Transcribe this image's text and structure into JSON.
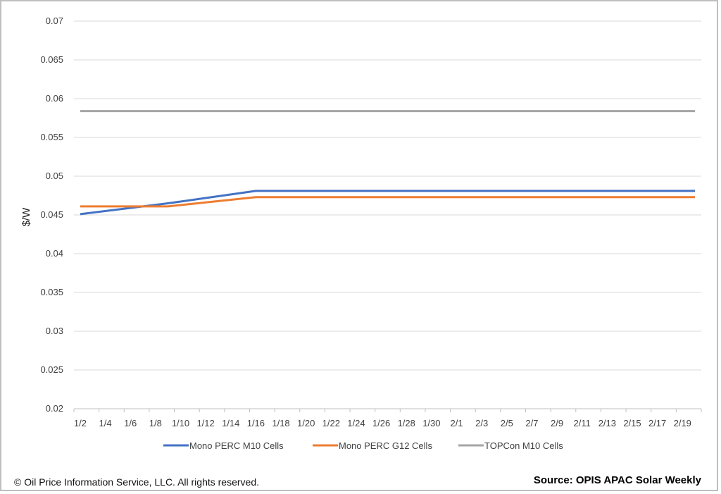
{
  "chart_data": {
    "type": "line",
    "title": "",
    "xlabel": "",
    "ylabel": "$/W",
    "ylim": [
      0.02,
      0.07
    ],
    "y_ticks": [
      "0.02",
      "0.025",
      "0.03",
      "0.035",
      "0.04",
      "0.045",
      "0.05",
      "0.055",
      "0.06",
      "0.065",
      "0.07"
    ],
    "x": [
      "1/2",
      "1/3",
      "1/4",
      "1/5",
      "1/6",
      "1/7",
      "1/8",
      "1/9",
      "1/10",
      "1/11",
      "1/12",
      "1/13",
      "1/14",
      "1/15",
      "1/16",
      "1/17",
      "1/18",
      "1/19",
      "1/20",
      "1/21",
      "1/22",
      "1/23",
      "1/24",
      "1/25",
      "1/26",
      "1/27",
      "1/28",
      "1/29",
      "1/30",
      "1/31",
      "2/1",
      "2/2",
      "2/3",
      "2/4",
      "2/5",
      "2/6",
      "2/7",
      "2/8",
      "2/9",
      "2/10",
      "2/11",
      "2/12",
      "2/13",
      "2/14",
      "2/15",
      "2/16",
      "2/17",
      "2/18",
      "2/19",
      "2/20"
    ],
    "x_tick_labels": [
      "1/2",
      "1/4",
      "1/6",
      "1/8",
      "1/10",
      "1/12",
      "1/14",
      "1/16",
      "1/18",
      "1/20",
      "1/22",
      "1/24",
      "1/26",
      "1/28",
      "1/30",
      "2/1",
      "2/3",
      "2/5",
      "2/7",
      "2/9",
      "2/11",
      "2/13",
      "2/15",
      "2/17",
      "2/19"
    ],
    "grid": true,
    "legend_position": "bottom",
    "series": [
      {
        "name": "Mono PERC M10 Cells",
        "color": "#4472c4",
        "points": [
          [
            "1/2",
            0.0451
          ],
          [
            "1/9",
            0.0465
          ],
          [
            "1/16",
            0.0481
          ],
          [
            "2/20",
            0.0481
          ]
        ]
      },
      {
        "name": "Mono PERC G12 Cells",
        "color": "#ed7d31",
        "points": [
          [
            "1/2",
            0.0461
          ],
          [
            "1/9",
            0.0461
          ],
          [
            "1/16",
            0.0473
          ],
          [
            "2/20",
            0.0473
          ]
        ]
      },
      {
        "name": "TOPCon M10 Cells",
        "color": "#a5a5a5",
        "points": [
          [
            "1/2",
            0.0584
          ],
          [
            "2/20",
            0.0584
          ]
        ]
      }
    ]
  },
  "footer": {
    "copyright": "© Oil Price Information Service, LLC.  All rights reserved.",
    "source": "Source: OPIS APAC Solar Weekly"
  }
}
